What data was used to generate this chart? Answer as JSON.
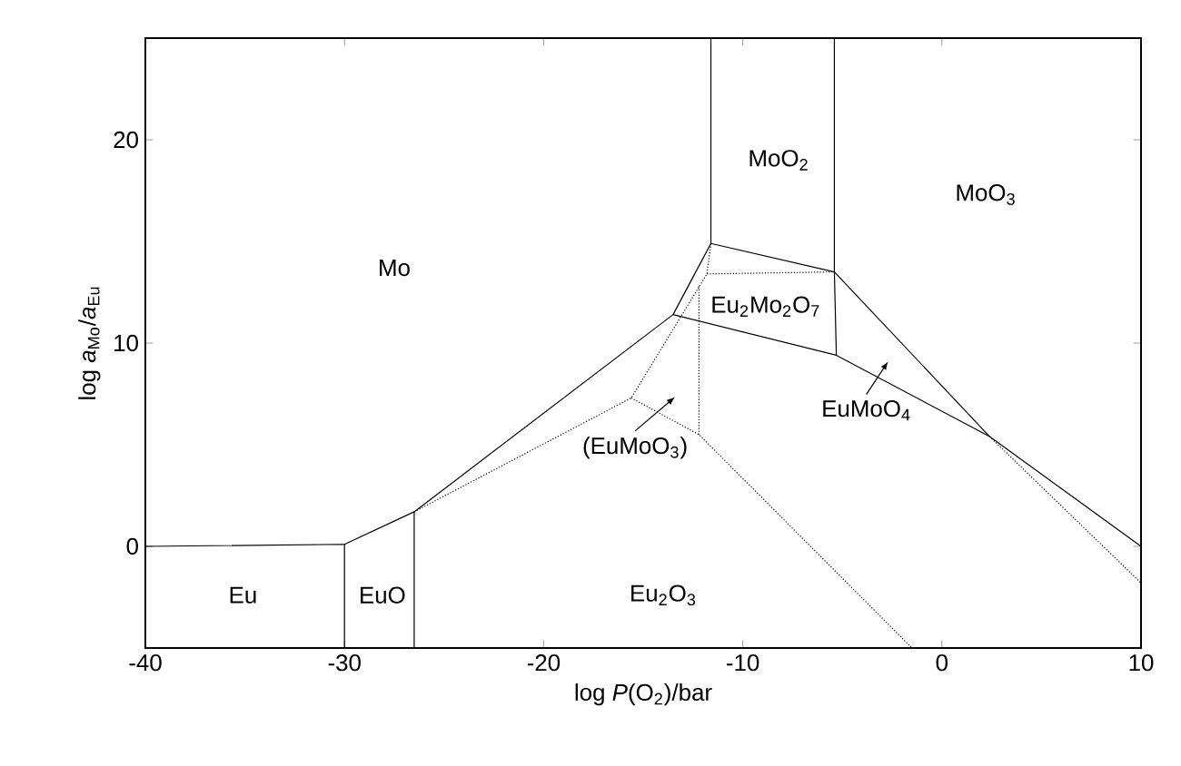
{
  "chart_data": {
    "type": "line",
    "xlabel": "log *P*(O$_{2}$)/bar",
    "ylabel": "log *a*$_{Mo}$/*a*$_{Eu}$",
    "xlim": [
      -40,
      10
    ],
    "ylim": [
      -5,
      25
    ],
    "xticks": [
      -40,
      -30,
      -20,
      -10,
      0,
      10
    ],
    "yticks": [
      0,
      10,
      20
    ],
    "series": [
      {
        "color": "#000000",
        "line_style": "solid",
        "x": [
          -40,
          -30,
          -30
        ],
        "values": [
          0,
          0.1,
          -5
        ]
      },
      {
        "color": "#000000",
        "line_style": "solid",
        "x": [
          -30,
          -26.5,
          -13.5,
          -11.6,
          -5.4,
          2.4,
          10
        ],
        "values": [
          0.1,
          1.7,
          11.4,
          14.9,
          13.5,
          5.4,
          0
        ]
      },
      {
        "color": "#000000",
        "line_style": "solid",
        "x": [
          -26.5,
          -26.5
        ],
        "values": [
          -5,
          1.7
        ]
      },
      {
        "color": "#000000",
        "line_style": "solid",
        "x": [
          -11.6,
          -11.6
        ],
        "values": [
          14.9,
          25
        ]
      },
      {
        "color": "#000000",
        "line_style": "solid",
        "x": [
          -5.4,
          -5.4,
          -5.3
        ],
        "values": [
          25,
          13.5,
          9.4
        ]
      },
      {
        "color": "#000000",
        "line_style": "solid",
        "x": [
          -13.5,
          -5.3,
          2.4
        ],
        "values": [
          11.4,
          9.4,
          5.4
        ]
      },
      {
        "color": "#000000",
        "line_style": "dotted",
        "x": [
          -26.5,
          -15.6,
          -11.8,
          -11.6
        ],
        "values": [
          1.7,
          7.3,
          13.4,
          14.9
        ]
      },
      {
        "color": "#000000",
        "line_style": "dotted",
        "x": [
          -11.8,
          -5.4
        ],
        "values": [
          13.4,
          13.5
        ]
      },
      {
        "color": "#000000",
        "line_style": "dotted",
        "x": [
          -12.2,
          -12.2
        ],
        "values": [
          12.8,
          5.5
        ]
      },
      {
        "color": "#000000",
        "line_style": "dotted",
        "x": [
          -15.6,
          -12.2,
          -1.5
        ],
        "values": [
          7.3,
          5.5,
          -5
        ]
      },
      {
        "color": "#000000",
        "line_style": "dotted",
        "x": [
          2.4,
          10
        ],
        "values": [
          5.4,
          -1.8
        ]
      }
    ],
    "annotations": [
      "Mo",
      "MoO$_{2}$",
      "MoO$_{3}$",
      "Eu$_{2}$Mo$_{2}$O$_{7}$",
      "EuMoO$_{4}$",
      "(EuMoO$_{3}$)",
      "Eu",
      "EuO",
      "Eu$_{2}$O$_{3}$"
    ]
  }
}
